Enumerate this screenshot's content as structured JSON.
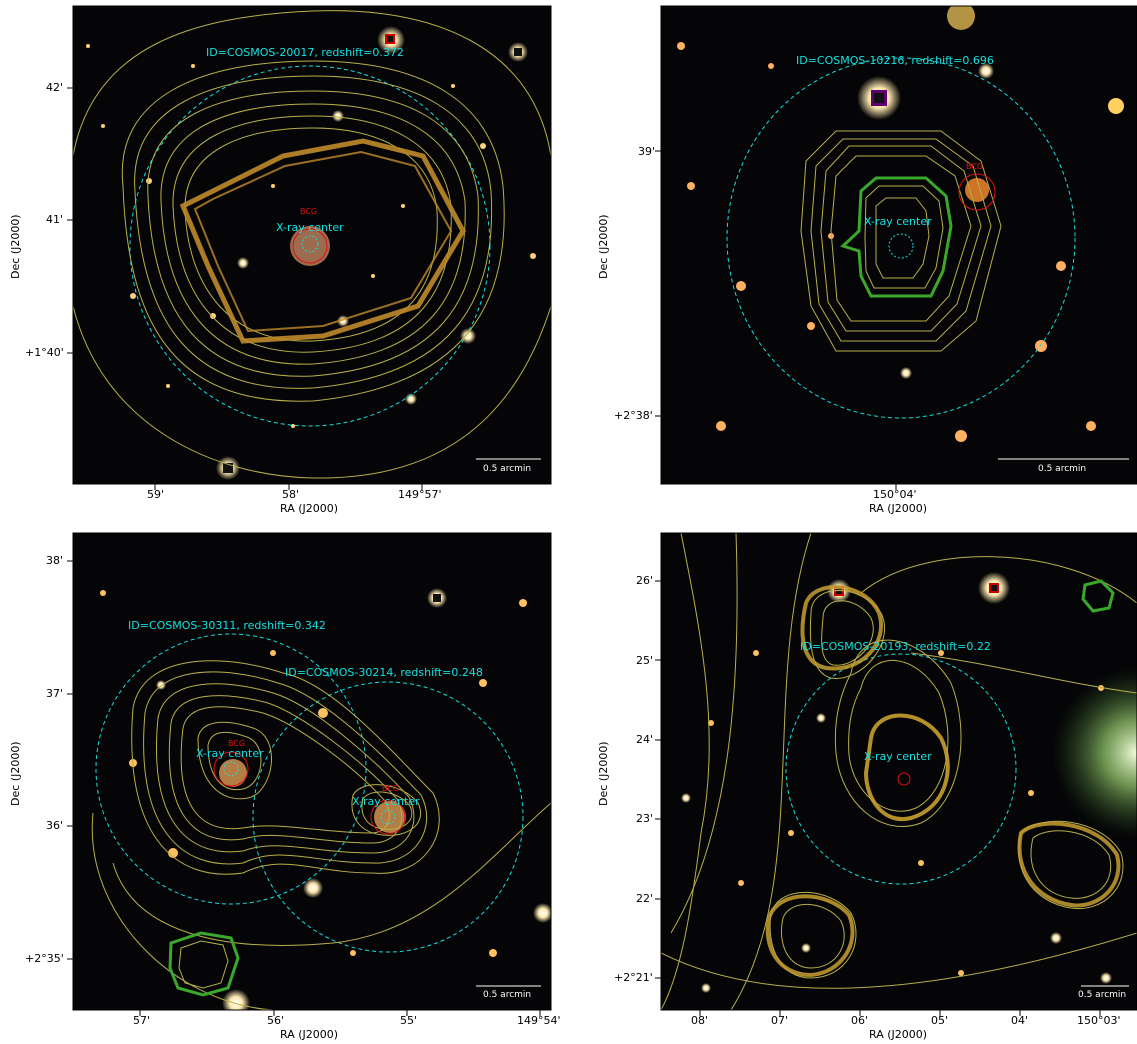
{
  "panels": [
    {
      "id_label": "ID=COSMOS-20017, redshift=0.372",
      "xray_label": "X-ray center",
      "bcg_label": "BCG",
      "scale_label": "0.5 arcmin",
      "xlabel": "RA (J2000)",
      "ylabel": "Dec (J2000)",
      "xticks": [
        "59'",
        "58'",
        "149°57'"
      ],
      "yticks": [
        "42'",
        "41'",
        "+1°40'"
      ]
    },
    {
      "id_label": "ID=COSMOS-10216, redshift=0.696",
      "xray_label": "X-ray center",
      "bcg_label": "BCG",
      "scale_label": "0.5 arcmin",
      "xlabel": "RA (J2000)",
      "ylabel": "Dec (J2000)",
      "xticks": [
        "150°04'"
      ],
      "yticks": [
        "39'",
        "+2°38'"
      ]
    },
    {
      "id_label": "ID=COSMOS-30311, redshift=0.342",
      "id_label_2": "ID=COSMOS-30214, redshift=0.248",
      "xray_label": "X-ray center",
      "xray_label_2": "X-ray center",
      "bcg_label": "BCG",
      "bcg_label_2": "BCG",
      "scale_label": "0.5 arcmin",
      "xlabel": "RA (J2000)",
      "ylabel": "Dec (J2000)",
      "xticks": [
        "57'",
        "56'",
        "55'",
        "149°54'"
      ],
      "yticks": [
        "38'",
        "37'",
        "36'",
        "+2°35'"
      ]
    },
    {
      "id_label": "ID=COSMOS-20193, redshift=0.22",
      "xray_label": "X-ray center",
      "scale_label": "0.5 arcmin",
      "xlabel": "RA (J2000)",
      "ylabel": "Dec (J2000)",
      "xticks": [
        "08'",
        "07'",
        "06'",
        "05'",
        "04'",
        "150°03'"
      ],
      "yticks": [
        "26'",
        "25'",
        "24'",
        "23'",
        "22'",
        "+2°21'"
      ]
    }
  ],
  "colors": {
    "annotation": "#14e0e0",
    "contour": "#b8b04a",
    "contour_bold": "#c08a2a",
    "contour_green": "#3aa82a",
    "bcg_circle": "#e01010"
  }
}
